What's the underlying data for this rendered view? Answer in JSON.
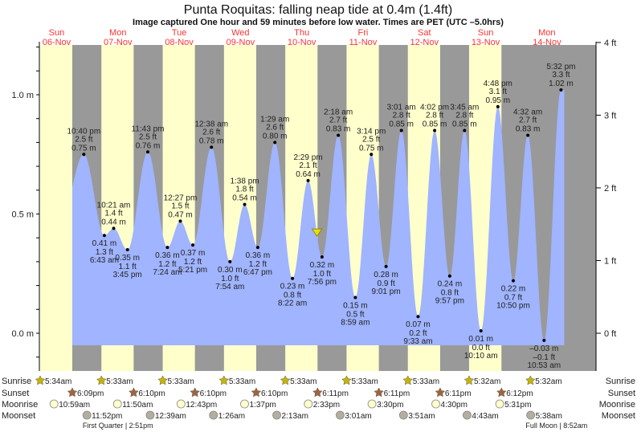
{
  "chart_data": {
    "type": "area",
    "title": "Punta Roquitas: falling  neap tide at 0.4m (1.4ft)",
    "subtitle": "Image captured One hour and 59 minutes before low water. Times are PET (UTC –5.0hrs)",
    "days": [
      {
        "dow": "Sun",
        "date": "06-Nov"
      },
      {
        "dow": "Mon",
        "date": "07-Nov"
      },
      {
        "dow": "Tue",
        "date": "08-Nov"
      },
      {
        "dow": "Wed",
        "date": "09-Nov"
      },
      {
        "dow": "Thu",
        "date": "10-Nov"
      },
      {
        "dow": "Fri",
        "date": "11-Nov"
      },
      {
        "dow": "Sat",
        "date": "12-Nov"
      },
      {
        "dow": "Sun",
        "date": "13-Nov"
      },
      {
        "dow": "Mon",
        "date": "14-Nov"
      }
    ],
    "y_left": {
      "unit": "m",
      "ticks": [
        "0.0 m",
        "0.5 m",
        "1.0 m"
      ],
      "ylim": [
        -0.15,
        1.2
      ]
    },
    "y_right": {
      "unit": "ft",
      "ticks": [
        "0 ft",
        "1 ft",
        "2 ft",
        "3 ft",
        "4 ft"
      ]
    },
    "extremes": [
      {
        "date": "06-Nov",
        "time": "10:40 pm",
        "m": 0.75,
        "ft": 2.5,
        "type": "high"
      },
      {
        "date": "07-Nov",
        "time": "6:43 am",
        "m": 0.41,
        "ft": 1.3,
        "type": "low"
      },
      {
        "date": "07-Nov",
        "time": "10:21 am",
        "m": 0.44,
        "ft": 1.4,
        "type": "high"
      },
      {
        "date": "07-Nov",
        "time": "3:45 pm",
        "m": 0.35,
        "ft": 1.1,
        "type": "low"
      },
      {
        "date": "07-Nov",
        "time": "11:43 pm",
        "m": 0.76,
        "ft": 2.5,
        "type": "high"
      },
      {
        "date": "08-Nov",
        "time": "7:24 am",
        "m": 0.36,
        "ft": 1.2,
        "type": "low"
      },
      {
        "date": "08-Nov",
        "time": "12:27 pm",
        "m": 0.47,
        "ft": 1.5,
        "type": "high"
      },
      {
        "date": "08-Nov",
        "time": "5:21 pm",
        "m": 0.37,
        "ft": 1.2,
        "type": "low"
      },
      {
        "date": "09-Nov",
        "time": "12:38 am",
        "m": 0.78,
        "ft": 2.6,
        "type": "high"
      },
      {
        "date": "09-Nov",
        "time": "7:54 am",
        "m": 0.3,
        "ft": 1.0,
        "type": "low"
      },
      {
        "date": "09-Nov",
        "time": "1:38 pm",
        "m": 0.54,
        "ft": 1.8,
        "type": "high"
      },
      {
        "date": "09-Nov",
        "time": "6:47 pm",
        "m": 0.36,
        "ft": 1.2,
        "type": "low"
      },
      {
        "date": "10-Nov",
        "time": "1:29 am",
        "m": 0.8,
        "ft": 2.6,
        "type": "high"
      },
      {
        "date": "10-Nov",
        "time": "8:22 am",
        "m": 0.23,
        "ft": 0.8,
        "type": "low"
      },
      {
        "date": "10-Nov",
        "time": "2:29 pm",
        "m": 0.64,
        "ft": 2.1,
        "type": "high"
      },
      {
        "date": "10-Nov",
        "time": "7:56 pm",
        "m": 0.32,
        "ft": 1.0,
        "type": "low"
      },
      {
        "date": "11-Nov",
        "time": "2:18 am",
        "m": 0.83,
        "ft": 2.7,
        "type": "high"
      },
      {
        "date": "11-Nov",
        "time": "8:59 am",
        "m": 0.15,
        "ft": 0.5,
        "type": "low"
      },
      {
        "date": "11-Nov",
        "time": "3:14 pm",
        "m": 0.75,
        "ft": 2.5,
        "type": "high"
      },
      {
        "date": "11-Nov",
        "time": "9:01 pm",
        "m": 0.28,
        "ft": 0.9,
        "type": "low"
      },
      {
        "date": "12-Nov",
        "time": "3:01 am",
        "m": 0.85,
        "ft": 2.8,
        "type": "high"
      },
      {
        "date": "12-Nov",
        "time": "9:33 am",
        "m": 0.07,
        "ft": 0.2,
        "type": "low"
      },
      {
        "date": "12-Nov",
        "time": "4:02 pm",
        "m": 0.85,
        "ft": 2.8,
        "type": "high"
      },
      {
        "date": "12-Nov",
        "time": "9:57 pm",
        "m": 0.24,
        "ft": 0.8,
        "type": "low"
      },
      {
        "date": "13-Nov",
        "time": "3:45 am",
        "m": 0.85,
        "ft": 2.8,
        "type": "high"
      },
      {
        "date": "13-Nov",
        "time": "10:10 am",
        "m": 0.01,
        "ft": 0.0,
        "type": "low"
      },
      {
        "date": "13-Nov",
        "time": "4:48 pm",
        "m": 0.95,
        "ft": 3.1,
        "type": "high"
      },
      {
        "date": "13-Nov",
        "time": "10:50 pm",
        "m": 0.22,
        "ft": 0.7,
        "type": "low"
      },
      {
        "date": "14-Nov",
        "time": "4:32 am",
        "m": 0.83,
        "ft": 2.7,
        "type": "high"
      },
      {
        "date": "14-Nov",
        "time": "10:53 am",
        "m": -0.03,
        "ft": -0.1,
        "type": "low"
      },
      {
        "date": "14-Nov",
        "time": "5:32 pm",
        "m": 1.02,
        "ft": 3.3,
        "type": "high"
      }
    ],
    "current": {
      "date": "10-Nov",
      "time": "5:57 pm",
      "m": 0.4,
      "ft": 1.4,
      "state": "falling"
    },
    "colors": {
      "water": "#a0b4ff",
      "day": "#ffffcc",
      "night": "#999999",
      "day_label": "#ff3333",
      "sun": "#c8b400",
      "sunset": "#a0643c",
      "moonrise": "#ffffcc",
      "moonset": "#b4aea0"
    }
  },
  "astro": {
    "labels": {
      "sunrise": "Sunrise",
      "sunset": "Sunset",
      "moonrise": "Moonrise",
      "moonset": "Moonset"
    },
    "sunrise": [
      {
        "date": "06-Nov",
        "time": "5:34am"
      },
      {
        "date": "07-Nov",
        "time": "5:33am"
      },
      {
        "date": "08-Nov",
        "time": "5:33am"
      },
      {
        "date": "09-Nov",
        "time": "5:33am"
      },
      {
        "date": "10-Nov",
        "time": "5:33am"
      },
      {
        "date": "11-Nov",
        "time": "5:33am"
      },
      {
        "date": "12-Nov",
        "time": "5:33am"
      },
      {
        "date": "13-Nov",
        "time": "5:32am"
      },
      {
        "date": "14-Nov",
        "time": "5:32am"
      }
    ],
    "sunset": [
      {
        "date": "06-Nov",
        "time": "6:09pm"
      },
      {
        "date": "07-Nov",
        "time": "6:10pm"
      },
      {
        "date": "08-Nov",
        "time": "6:10pm"
      },
      {
        "date": "09-Nov",
        "time": "6:10pm"
      },
      {
        "date": "10-Nov",
        "time": "6:11pm"
      },
      {
        "date": "11-Nov",
        "time": "6:11pm"
      },
      {
        "date": "12-Nov",
        "time": "6:11pm"
      },
      {
        "date": "13-Nov",
        "time": "6:12pm"
      }
    ],
    "moonrise": [
      {
        "date": "06-Nov",
        "time": "10:59am"
      },
      {
        "date": "07-Nov",
        "time": "11:50am"
      },
      {
        "date": "08-Nov",
        "time": "12:43pm"
      },
      {
        "date": "09-Nov",
        "time": "1:37pm"
      },
      {
        "date": "10-Nov",
        "time": "2:33pm"
      },
      {
        "date": "11-Nov",
        "time": "3:30pm"
      },
      {
        "date": "12-Nov",
        "time": "4:30pm"
      },
      {
        "date": "13-Nov",
        "time": "5:31pm"
      }
    ],
    "moonset": [
      {
        "date": "06-Nov",
        "time": "11:52pm"
      },
      {
        "date": "08-Nov",
        "time": "12:39am"
      },
      {
        "date": "09-Nov",
        "time": "1:26am"
      },
      {
        "date": "10-Nov",
        "time": "2:13am"
      },
      {
        "date": "11-Nov",
        "time": "3:01am"
      },
      {
        "date": "12-Nov",
        "time": "3:51am"
      },
      {
        "date": "13-Nov",
        "time": "4:43am"
      },
      {
        "date": "14-Nov",
        "time": "5:38am"
      }
    ],
    "phases": [
      {
        "label": "First Quarter | 2:51pm",
        "date": "07-Nov"
      },
      {
        "label": "Full Moon | 8:52am",
        "date": "14-Nov"
      }
    ]
  }
}
